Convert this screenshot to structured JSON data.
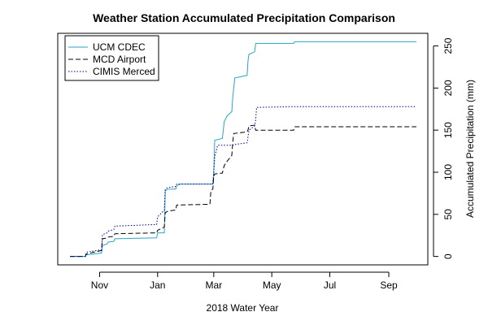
{
  "chart_data": {
    "type": "line",
    "title": "Weather Station Accumulated Precipitation Comparison",
    "xlabel": "2018 Water Year",
    "ylabel": "Accumulated Precipitation (mm)",
    "x_domain": [
      "2017-10-01",
      "2018-09-30"
    ],
    "xlim": [
      "2017-09-18",
      "2018-10-12"
    ],
    "ylim": [
      -10,
      265
    ],
    "x_ticks": [
      {
        "label": "Nov",
        "date": "2017-11-01"
      },
      {
        "label": "Jan",
        "date": "2018-01-01"
      },
      {
        "label": "Mar",
        "date": "2018-03-01"
      },
      {
        "label": "May",
        "date": "2018-05-01"
      },
      {
        "label": "Jul",
        "date": "2018-07-01"
      },
      {
        "label": "Sep",
        "date": "2018-09-01"
      }
    ],
    "y_ticks": [
      0,
      50,
      100,
      150,
      200,
      250
    ],
    "grid": false,
    "legend_position": "top-left",
    "series": [
      {
        "name": "UCM CDEC",
        "color": "#29a6c7",
        "line": "solid",
        "points": [
          [
            "2017-10-01",
            0
          ],
          [
            "2017-10-17",
            0
          ],
          [
            "2017-10-18",
            2
          ],
          [
            "2017-11-03",
            4
          ],
          [
            "2017-11-04",
            13
          ],
          [
            "2017-11-09",
            15
          ],
          [
            "2017-11-10",
            17
          ],
          [
            "2017-11-16",
            18
          ],
          [
            "2017-11-17",
            21
          ],
          [
            "2017-12-31",
            22
          ],
          [
            "2018-01-01",
            28
          ],
          [
            "2018-01-08",
            28
          ],
          [
            "2018-01-09",
            78
          ],
          [
            "2018-01-12",
            80
          ],
          [
            "2018-01-20",
            80
          ],
          [
            "2018-01-21",
            84
          ],
          [
            "2018-01-25",
            86
          ],
          [
            "2018-02-28",
            86
          ],
          [
            "2018-03-01",
            100
          ],
          [
            "2018-03-02",
            138
          ],
          [
            "2018-03-10",
            140
          ],
          [
            "2018-03-12",
            160
          ],
          [
            "2018-03-15",
            167
          ],
          [
            "2018-03-20",
            172
          ],
          [
            "2018-03-21",
            190
          ],
          [
            "2018-03-22",
            200
          ],
          [
            "2018-03-23",
            212
          ],
          [
            "2018-04-05",
            215
          ],
          [
            "2018-04-06",
            232
          ],
          [
            "2018-04-07",
            240
          ],
          [
            "2018-04-13",
            243
          ],
          [
            "2018-04-14",
            253
          ],
          [
            "2018-05-24",
            253
          ],
          [
            "2018-05-25",
            255
          ],
          [
            "2018-09-30",
            255
          ]
        ]
      },
      {
        "name": "MCD Airport",
        "color": "#000000",
        "line": "dashed",
        "points": [
          [
            "2017-10-01",
            0
          ],
          [
            "2017-10-17",
            0
          ],
          [
            "2017-10-18",
            3
          ],
          [
            "2017-11-03",
            7
          ],
          [
            "2017-11-04",
            21
          ],
          [
            "2017-11-09",
            22
          ],
          [
            "2017-11-10",
            23
          ],
          [
            "2017-11-16",
            24
          ],
          [
            "2017-11-17",
            27
          ],
          [
            "2017-12-31",
            28
          ],
          [
            "2018-01-01",
            31
          ],
          [
            "2018-01-08",
            35
          ],
          [
            "2018-01-09",
            52
          ],
          [
            "2018-01-12",
            54
          ],
          [
            "2018-01-20",
            55
          ],
          [
            "2018-01-21",
            61
          ],
          [
            "2018-02-25",
            62
          ],
          [
            "2018-02-26",
            78
          ],
          [
            "2018-02-28",
            80
          ],
          [
            "2018-03-01",
            95
          ],
          [
            "2018-03-02",
            98
          ],
          [
            "2018-03-10",
            99
          ],
          [
            "2018-03-12",
            108
          ],
          [
            "2018-03-15",
            113
          ],
          [
            "2018-03-20",
            120
          ],
          [
            "2018-03-21",
            136
          ],
          [
            "2018-03-22",
            146
          ],
          [
            "2018-04-05",
            148
          ],
          [
            "2018-04-06",
            150
          ],
          [
            "2018-04-07",
            155
          ],
          [
            "2018-04-13",
            156
          ],
          [
            "2018-04-14",
            150
          ],
          [
            "2018-05-24",
            150
          ],
          [
            "2018-05-25",
            154
          ],
          [
            "2018-09-30",
            154
          ]
        ]
      },
      {
        "name": "CIMIS Merced",
        "color": "#00008b",
        "line": "dotted",
        "points": [
          [
            "2017-10-01",
            0
          ],
          [
            "2017-10-17",
            0
          ],
          [
            "2017-10-18",
            5
          ],
          [
            "2017-11-03",
            8
          ],
          [
            "2017-11-04",
            26
          ],
          [
            "2017-11-09",
            28
          ],
          [
            "2017-11-10",
            30
          ],
          [
            "2017-11-16",
            32
          ],
          [
            "2017-11-17",
            36
          ],
          [
            "2017-12-31",
            38
          ],
          [
            "2018-01-01",
            47
          ],
          [
            "2018-01-08",
            55
          ],
          [
            "2018-01-09",
            80
          ],
          [
            "2018-01-12",
            82
          ],
          [
            "2018-01-20",
            83
          ],
          [
            "2018-01-21",
            86
          ],
          [
            "2018-02-28",
            86
          ],
          [
            "2018-03-01",
            100
          ],
          [
            "2018-03-02",
            118
          ],
          [
            "2018-03-05",
            132
          ],
          [
            "2018-03-22",
            132
          ],
          [
            "2018-03-23",
            133
          ],
          [
            "2018-04-05",
            135
          ],
          [
            "2018-04-06",
            142
          ],
          [
            "2018-04-07",
            150
          ],
          [
            "2018-04-13",
            155
          ],
          [
            "2018-04-14",
            162
          ],
          [
            "2018-04-15",
            177
          ],
          [
            "2018-05-24",
            178
          ],
          [
            "2018-05-25",
            178
          ],
          [
            "2018-09-30",
            178
          ]
        ]
      }
    ]
  }
}
